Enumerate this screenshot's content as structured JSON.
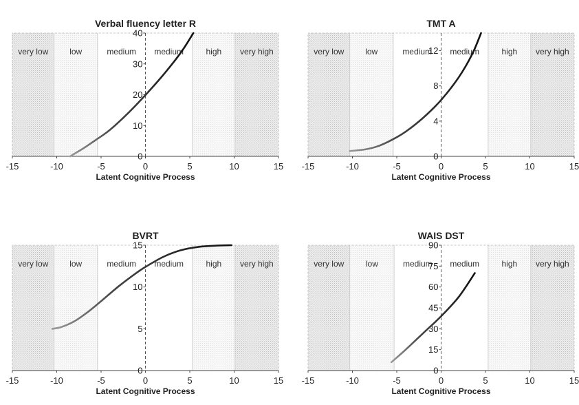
{
  "chart_data": [
    {
      "type": "line",
      "title": "Verbal fluency letter R",
      "xlabel": "Latent Cognitive Process",
      "ylabel": "",
      "xlim": [
        -15,
        15
      ],
      "ylim": [
        0,
        40
      ],
      "xticks": [
        "-15",
        "-10",
        "-5",
        "0",
        "5",
        "10",
        "15"
      ],
      "yticks": [
        "0",
        "10",
        "20",
        "30",
        "40"
      ],
      "bands": [
        "very low",
        "low",
        "medium",
        "medium",
        "high",
        "very high"
      ],
      "band_edges": [
        -15,
        -10.3,
        -5.4,
        0,
        5.3,
        10.1,
        15
      ],
      "series": [
        {
          "x": [
            -8.5,
            -7,
            -5.4,
            -4,
            -2,
            0,
            2,
            4,
            5.4
          ],
          "y": [
            0,
            2.6,
            5.7,
            8.6,
            13.9,
            19.9,
            26.4,
            33.7,
            40
          ]
        }
      ]
    },
    {
      "type": "line",
      "title": "TMT A",
      "xlabel": "Latent Cognitive Process",
      "ylabel": "",
      "xlim": [
        -15,
        15
      ],
      "ylim": [
        0,
        14
      ],
      "xticks": [
        "-15",
        "-10",
        "-5",
        "0",
        "5",
        "10",
        "15"
      ],
      "yticks": [
        "0",
        "4",
        "8",
        "12"
      ],
      "bands": [
        "very low",
        "low",
        "medium",
        "medium",
        "high",
        "very high"
      ],
      "band_edges": [
        -15,
        -10.3,
        -5.4,
        0,
        5.3,
        10.1,
        15
      ],
      "series": [
        {
          "x": [
            -10.3,
            -8.5,
            -7,
            -5.5,
            -4,
            -2,
            0,
            2,
            3.5,
            4.5
          ],
          "y": [
            0.6,
            0.8,
            1.2,
            1.9,
            2.8,
            4.4,
            6.4,
            9.0,
            11.6,
            14.0
          ]
        }
      ]
    },
    {
      "type": "line",
      "title": "BVRT",
      "xlabel": "Latent Cognitive Process",
      "ylabel": "",
      "xlim": [
        -15,
        15
      ],
      "ylim": [
        0,
        15
      ],
      "xticks": [
        "-15",
        "-10",
        "-5",
        "0",
        "5",
        "10",
        "15"
      ],
      "yticks": [
        "0",
        "5",
        "10",
        "15"
      ],
      "bands": [
        "very low",
        "low",
        "medium",
        "medium",
        "high",
        "very high"
      ],
      "band_edges": [
        -15,
        -10.3,
        -5.4,
        0,
        5.3,
        10.1,
        15
      ],
      "series": [
        {
          "x": [
            -10.5,
            -9.5,
            -8,
            -6.5,
            -5,
            -3,
            -1,
            0,
            2,
            4,
            6,
            8,
            9.7
          ],
          "y": [
            5.0,
            5.2,
            5.9,
            7.0,
            8.3,
            10.1,
            11.7,
            12.4,
            13.6,
            14.4,
            14.8,
            14.95,
            15.0
          ]
        }
      ]
    },
    {
      "type": "line",
      "title": "WAIS DST",
      "xlabel": "Latent Cognitive Process",
      "ylabel": "",
      "xlim": [
        -15,
        15
      ],
      "ylim": [
        0,
        90
      ],
      "xticks": [
        "-15",
        "-10",
        "-5",
        "0",
        "5",
        "10",
        "15"
      ],
      "yticks": [
        "0",
        "15",
        "30",
        "45",
        "60",
        "75",
        "90"
      ],
      "bands": [
        "very low",
        "low",
        "medium",
        "medium",
        "high",
        "very high"
      ],
      "band_edges": [
        -15,
        -10.3,
        -5.3,
        0,
        5.3,
        10.1,
        15
      ],
      "series": [
        {
          "x": [
            -5.6,
            -4,
            -2,
            0,
            2,
            3.8
          ],
          "y": [
            6,
            15,
            27,
            39,
            53,
            70
          ]
        }
      ]
    }
  ]
}
